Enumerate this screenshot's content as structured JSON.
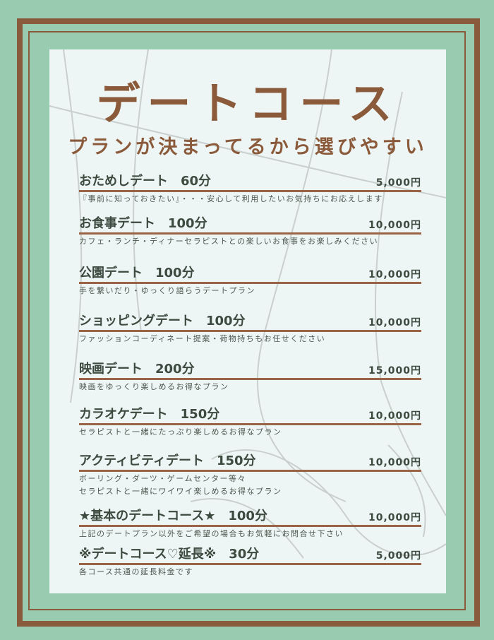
{
  "title": "デートコース",
  "subtitle": "プランが決まってるから選びやすい",
  "colors": {
    "background": "#98cbb0",
    "frame": "#8a5a3c",
    "panel": "#edf6f5",
    "heading": "#8b5a3a",
    "text": "#3c4a40"
  },
  "items": [
    {
      "name": "おためしデート　60分",
      "price": "5,000円",
      "desc": [
        "『事前に知っておきたい』・・・安心して利用したいお気持ちにお応えします"
      ]
    },
    {
      "name": "お食事デート　100分",
      "price": "10,000円",
      "desc": [
        "カフェ・ランチ・ディナーセラピストとの楽しいお食事をお楽しみください"
      ]
    },
    {
      "name": "公園デート　100分",
      "price": "10,000円",
      "desc": [
        "手を繋いだり・ゆっくり語らうデートプラン"
      ]
    },
    {
      "name": "ショッピングデート　100分",
      "price": "10,000円",
      "desc": [
        "ファッションコーディネート提案・荷物持ちもお任せください"
      ]
    },
    {
      "name": "映画デート　200分",
      "price": "15,000円",
      "desc": [
        "映画をゆっくり楽しめるお得なプラン"
      ]
    },
    {
      "name": "カラオケデート　150分",
      "price": "10,000円",
      "desc": [
        "セラピストと一緒にたっぷり楽しめるお得なプラン"
      ]
    },
    {
      "name": "アクティビティデート　150分",
      "price": "10,000円",
      "desc": [
        "ボーリング・ダーツ・ゲームセンター等々",
        "セラピストと一緒にワイワイ楽しめるお得なプラン"
      ]
    },
    {
      "name": "★基本のデートコース★　100分",
      "price": "10,000円",
      "desc": [
        "上記のデートプラン以外をご希望の場合もお気軽にお問合せ下さい"
      ]
    },
    {
      "name": "※デートコース♡延長※　30分",
      "price": "5,000円",
      "desc": [
        "各コース共通の延長料金です"
      ]
    }
  ]
}
